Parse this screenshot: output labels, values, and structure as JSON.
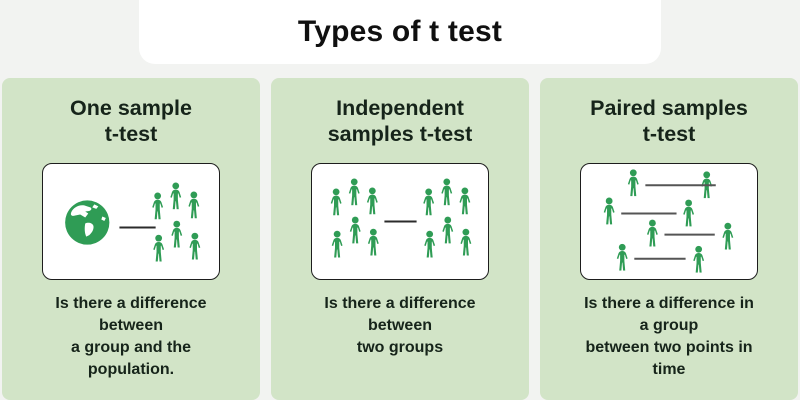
{
  "header": {
    "title": "Types of t test"
  },
  "theme": {
    "background": "#f2f3f1",
    "header_card": "#ffffff",
    "panel_bg": "#d2e4c7",
    "icon_green": "#2f9c55",
    "text_dark": "#16241a",
    "box_border": "#1d1d1d",
    "comparison_line": "#2b2b2b",
    "pair_line": "#555555"
  },
  "panels": [
    {
      "id": "one-sample",
      "title_lines": [
        "One sample",
        "t-test"
      ],
      "illustration": {
        "type": "globe-vs-group",
        "icons": [
          "globe-icon",
          "person-icon"
        ],
        "person_count": 6
      },
      "description_lines": [
        "Is there a difference",
        "between",
        "a group and the",
        "population."
      ]
    },
    {
      "id": "independent-samples",
      "title_lines": [
        "Independent",
        "samples t-test"
      ],
      "illustration": {
        "type": "group-vs-group",
        "icons": [
          "person-icon"
        ],
        "person_count": 12
      },
      "description_lines": [
        "Is there a difference",
        "between",
        "two groups"
      ]
    },
    {
      "id": "paired-samples",
      "title_lines": [
        "Paired samples",
        "t-test"
      ],
      "illustration": {
        "type": "paired-points",
        "icons": [
          "person-icon"
        ],
        "person_count": 8
      },
      "description_lines": [
        "Is there a difference in",
        "a group",
        "between two points in",
        "time"
      ]
    }
  ]
}
